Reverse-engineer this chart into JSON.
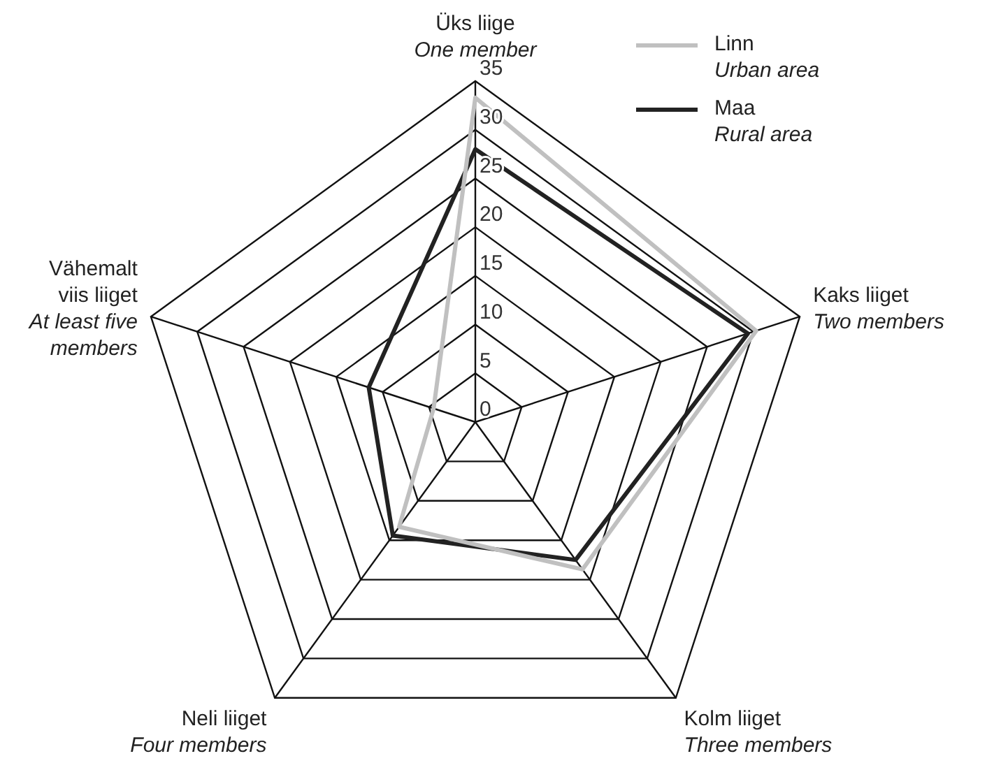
{
  "chart_data": {
    "type": "radar",
    "categories": [
      "Üks liige\nOne member",
      "Kaks liiget\nTwo members",
      "Kolm liiget\nThree members",
      "Neli liiget\nFour members",
      "Vähemalt\nviis liiget\nAt least five\nmembers"
    ],
    "series": [
      {
        "name": "Linn\nUrban area",
        "color": "#c0c0c0",
        "values": [
          33.3,
          30.3,
          18.7,
          13.3,
          4.5
        ]
      },
      {
        "name": "Maa\nRural area",
        "color": "#222222",
        "values": [
          28,
          29.4,
          17.5,
          14.4,
          11.5
        ]
      }
    ],
    "ylim": [
      0,
      35
    ],
    "yticks": [
      0,
      5,
      10,
      15,
      20,
      25,
      30,
      35
    ],
    "grid": true,
    "legend": "top right",
    "marker": "none"
  }
}
